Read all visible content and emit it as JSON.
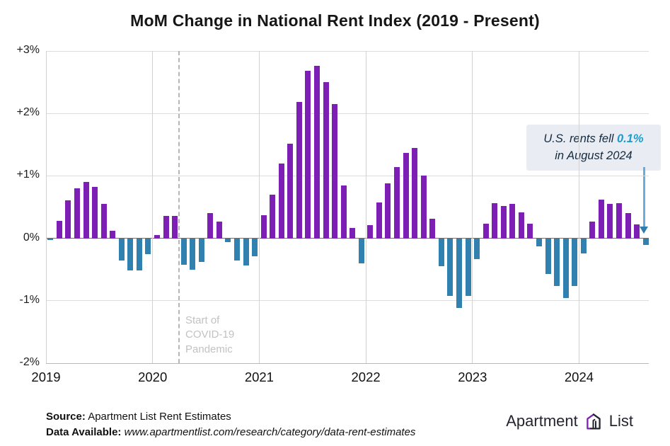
{
  "title": "MoM Change in National Rent Index (2019 - Present)",
  "chart_data": {
    "type": "bar",
    "title": "MoM Change in National Rent Index (2019 - Present)",
    "unit": "percent month-over-month",
    "x_tick_labels": [
      "2019",
      "2020",
      "2021",
      "2022",
      "2023",
      "2024"
    ],
    "y_tick_labels": [
      "+3%",
      "+2%",
      "+1%",
      "0%",
      "-1%",
      "-2%"
    ],
    "y_ticks": [
      3,
      2,
      1,
      0,
      -1,
      -2
    ],
    "ylim": [
      -2,
      3
    ],
    "grid": true,
    "legend": "none",
    "series": [
      {
        "year": "2019",
        "values": [
          -0.03,
          0.28,
          0.61,
          0.8,
          0.9,
          0.82,
          0.55,
          0.12,
          -0.36,
          -0.51,
          -0.51,
          -0.25
        ]
      },
      {
        "year": "2020",
        "values": [
          0.05,
          0.36,
          0.36,
          -0.42,
          -0.5,
          -0.38,
          0.4,
          0.27,
          -0.06,
          -0.36,
          -0.44,
          -0.29
        ]
      },
      {
        "year": "2021",
        "values": [
          0.37,
          0.7,
          1.2,
          1.51,
          2.18,
          2.68,
          2.76,
          2.5,
          2.15,
          0.85,
          0.16,
          -0.4
        ]
      },
      {
        "year": "2022",
        "values": [
          0.21,
          0.57,
          0.88,
          1.14,
          1.37,
          1.45,
          1.0,
          0.31,
          -0.45,
          -0.92,
          -1.12,
          -0.92
        ]
      },
      {
        "year": "2023",
        "values": [
          -0.33,
          0.23,
          0.56,
          0.52,
          0.55,
          0.42,
          0.23,
          -0.13,
          -0.57,
          -0.76,
          -0.96,
          -0.76
        ]
      },
      {
        "year": "2024",
        "values": [
          -0.24,
          0.27,
          0.62,
          0.55,
          0.56,
          0.4,
          0.22,
          -0.11
        ]
      }
    ],
    "colors": {
      "positive": "#7d1eb4",
      "negative": "#3080b0"
    },
    "covid_marker": {
      "between": "Mar 2020 and Apr 2020",
      "month_index": 15,
      "label": "Start of\nCOVID-19\nPandemic"
    }
  },
  "annotation": {
    "prefix": "U.S. rents fell ",
    "highlight": "0.1%",
    "line2": "in August 2024",
    "highlight_color": "#1e9cc9"
  },
  "footer": {
    "source_label": "Source:",
    "source_value": " Apartment List Rent Estimates",
    "data_label": "Data Available:",
    "data_value": " www.apartmentlist.com/research/category/data-rent-estimates"
  },
  "logo": {
    "word_left": "Apartment",
    "word_right": "List"
  }
}
